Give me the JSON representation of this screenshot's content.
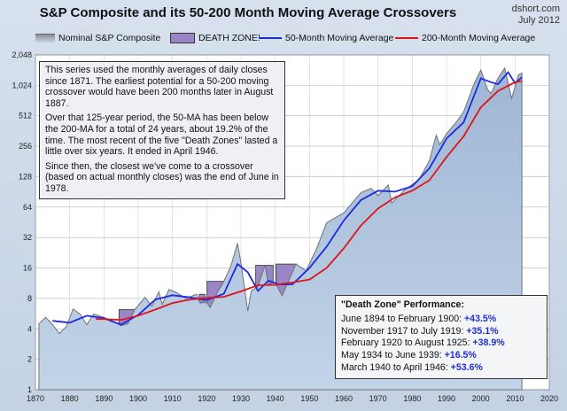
{
  "header": {
    "title": "S&P Composite and its 50-200 Month Moving Average Crossovers",
    "source": "dshort.com",
    "date": "July 2012"
  },
  "legend": {
    "nominal": "Nominal S&P Composite",
    "death_zone": "DEATH ZONE!",
    "ma50": "50-Month Moving Average",
    "ma200": "200-Month Moving Average"
  },
  "info_box": {
    "p1": "This series used the monthly averages of daily closes since 1871. The earliest potential for a 50-200 moving crossover would have been 200 months later in August 1887.",
    "p2": "Over that 125-year period, the 50-MA has been below the 200-MA for a total of 24 years, about 19.2% of the time. The most recent of the five \"Death Zones\" lasted a little over six years. It ended in April 1946.",
    "p3": "Since then, the closest we've come to a crossover (based on actual monthly closes) was the end of June in 1978."
  },
  "performance_box": {
    "heading": "\"Death Zone\" Performance:",
    "rows": [
      {
        "label": "June 1894 to February 1900: ",
        "pct": "+43.5%"
      },
      {
        "label": "November 1917 to July 1919: ",
        "pct": "+35.1%"
      },
      {
        "label": "February 1920 to August 1925: ",
        "pct": "+38.9%"
      },
      {
        "label": "May 1934 to June 1939: ",
        "pct": "+16.5%"
      },
      {
        "label": "March 1940 to April 1946: ",
        "pct": "+53.6%"
      }
    ]
  },
  "colors": {
    "area": "#c2d4e8",
    "area_line": "#6d7178",
    "death_zone": "#9a86c4",
    "ma50": "#1a2be0",
    "ma200": "#e0141c",
    "pct": "#1f2fd1"
  },
  "chart_data": {
    "type": "area",
    "yscale": "log2",
    "ylim": [
      1,
      2048
    ],
    "xlim": [
      1870,
      2020
    ],
    "y_ticks": [
      1,
      2,
      4,
      8,
      16,
      32,
      64,
      128,
      256,
      512,
      1024,
      2048
    ],
    "y_tick_labels": [
      "1",
      "2",
      "4",
      "8",
      "16",
      "32",
      "64",
      "128",
      "256",
      "512",
      "1,024",
      "2,048"
    ],
    "x_ticks": [
      1870,
      1880,
      1890,
      1900,
      1910,
      1920,
      1930,
      1940,
      1950,
      1960,
      1970,
      1980,
      1990,
      2000,
      2010,
      2020
    ],
    "death_zones": [
      [
        1894.4,
        1900.1
      ],
      [
        1917.8,
        1919.5
      ],
      [
        1920.1,
        1925.6
      ],
      [
        1934.3,
        1939.4
      ],
      [
        1940.2,
        1946.3
      ]
    ],
    "series": [
      {
        "name": "Nominal S&P Composite",
        "x": [
          1871,
          1873,
          1875,
          1877,
          1879,
          1881,
          1883,
          1885,
          1887,
          1890,
          1893,
          1895,
          1897,
          1899,
          1902,
          1904,
          1906,
          1907,
          1909,
          1911,
          1914,
          1917,
          1918,
          1920,
          1921,
          1923,
          1925,
          1927,
          1929,
          1930,
          1932,
          1933,
          1935,
          1937,
          1938,
          1940,
          1942,
          1945,
          1946,
          1949,
          1952,
          1955,
          1960,
          1965,
          1968,
          1970,
          1973,
          1974,
          1978,
          1982,
          1985,
          1987,
          1988,
          1990,
          1993,
          1995,
          1998,
          2000,
          2002,
          2003,
          2005,
          2007,
          2009,
          2011,
          2012
        ],
        "y": [
          4.5,
          5.2,
          4.4,
          3.6,
          4.2,
          6.3,
          5.6,
          4.4,
          5.6,
          5.2,
          4.7,
          4.3,
          4.5,
          6.2,
          8.2,
          6.7,
          9.3,
          7.0,
          9.8,
          9.2,
          8.0,
          8.8,
          7.2,
          7.3,
          6.5,
          9.0,
          11.8,
          16.5,
          28,
          18,
          6,
          9.5,
          10.5,
          17,
          11,
          11.5,
          8.5,
          14.5,
          17.5,
          15,
          24.5,
          45,
          56,
          89,
          98,
          83,
          106,
          70,
          96,
          120,
          185,
          330,
          265,
          340,
          450,
          560,
          1050,
          1450,
          930,
          850,
          1200,
          1520,
          760,
          1300,
          1360
        ]
      },
      {
        "name": "50-Month Moving Average",
        "x": [
          1875,
          1880,
          1885,
          1890,
          1895,
          1900,
          1905,
          1910,
          1915,
          1920,
          1925,
          1929,
          1932,
          1935,
          1938,
          1941,
          1945,
          1950,
          1955,
          1960,
          1965,
          1970,
          1975,
          1980,
          1985,
          1990,
          1995,
          2000,
          2003,
          2005,
          2008,
          2010,
          2012
        ],
        "y": [
          4.8,
          4.6,
          5.4,
          5.1,
          4.4,
          5.5,
          7.8,
          8.6,
          8.2,
          7.7,
          8.9,
          17.5,
          14.5,
          9.5,
          12,
          11,
          11,
          16,
          26,
          47,
          75,
          93,
          91,
          103,
          155,
          305,
          440,
          1200,
          1100,
          1050,
          1380,
          1080,
          1230
        ]
      },
      {
        "name": "200-Month Moving Average",
        "x": [
          1887.6,
          1890,
          1895,
          1900,
          1905,
          1910,
          1915,
          1920,
          1925,
          1930,
          1935,
          1940,
          1945,
          1950,
          1955,
          1960,
          1965,
          1970,
          1975,
          1980,
          1985,
          1990,
          1995,
          2000,
          2005,
          2010,
          2012
        ],
        "y": [
          5.0,
          5.0,
          4.9,
          5.4,
          6.2,
          7.2,
          7.8,
          8.1,
          8.3,
          9.4,
          10.8,
          10.9,
          11.5,
          12.3,
          16,
          25,
          42,
          62,
          80,
          93,
          118,
          200,
          320,
          620,
          900,
          1100,
          1130
        ]
      }
    ]
  }
}
